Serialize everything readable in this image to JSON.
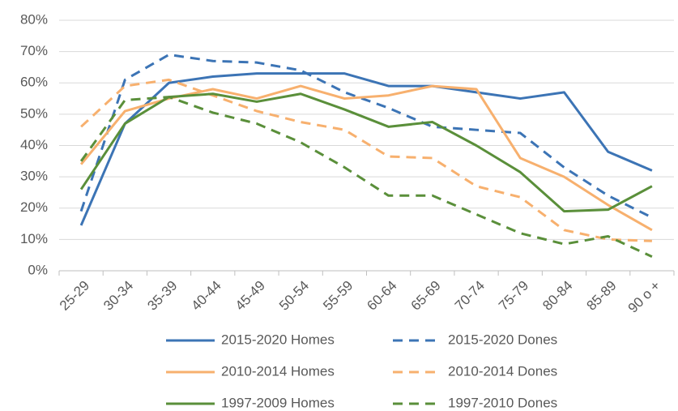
{
  "chart_data": {
    "type": "line",
    "categories": [
      "25-29",
      "30-34",
      "35-39",
      "40-44",
      "45-49",
      "50-54",
      "55-59",
      "60-64",
      "65-69",
      "70-74",
      "75-79",
      "80-84",
      "85-89",
      "90 o +"
    ],
    "series": [
      {
        "name": "2015-2020 Homes",
        "color": "#3c74b5",
        "style": "solid",
        "values": [
          14.5,
          47,
          60,
          62,
          63,
          63,
          63,
          59,
          59,
          57,
          55,
          57,
          38,
          32
        ]
      },
      {
        "name": "2015-2020 Dones",
        "color": "#3c74b5",
        "style": "dashed",
        "values": [
          19,
          61,
          69,
          67,
          66.5,
          64,
          57,
          52,
          46,
          45,
          44,
          33,
          24,
          17
        ]
      },
      {
        "name": "2010-2014 Homes",
        "color": "#f7b06e",
        "style": "solid",
        "values": [
          34,
          51,
          55,
          58,
          55,
          59,
          55,
          56,
          59,
          58,
          36,
          30,
          21,
          13
        ]
      },
      {
        "name": "2010-2014 Dones",
        "color": "#f7b06e",
        "style": "dashed",
        "values": [
          46,
          59,
          61,
          56,
          51,
          47.5,
          45,
          36.5,
          36,
          27,
          23.5,
          13,
          10,
          9.5
        ]
      },
      {
        "name": "1997-2009 Homes",
        "color": "#5a8f3a",
        "style": "solid",
        "values": [
          26,
          47,
          55.5,
          56.5,
          54,
          56.5,
          51.5,
          46,
          47.5,
          40,
          31.5,
          19,
          19.5,
          27
        ]
      },
      {
        "name": "1997-2010 Dones",
        "color": "#5a8f3a",
        "style": "dashed",
        "values": [
          35,
          54.5,
          55.5,
          50.5,
          47,
          41,
          33,
          24,
          24,
          18,
          12,
          8.5,
          11,
          4.5
        ]
      }
    ],
    "ylim": [
      0,
      80
    ],
    "yticks": [
      {
        "value": 0,
        "label": "0%"
      },
      {
        "value": 10,
        "label": "10%"
      },
      {
        "value": 20,
        "label": "20%"
      },
      {
        "value": 30,
        "label": "30%"
      },
      {
        "value": 40,
        "label": "40%"
      },
      {
        "value": 50,
        "label": "50%"
      },
      {
        "value": 60,
        "label": "60%"
      },
      {
        "value": 70,
        "label": "70%"
      },
      {
        "value": 80,
        "label": "80%"
      }
    ],
    "grid": true
  }
}
